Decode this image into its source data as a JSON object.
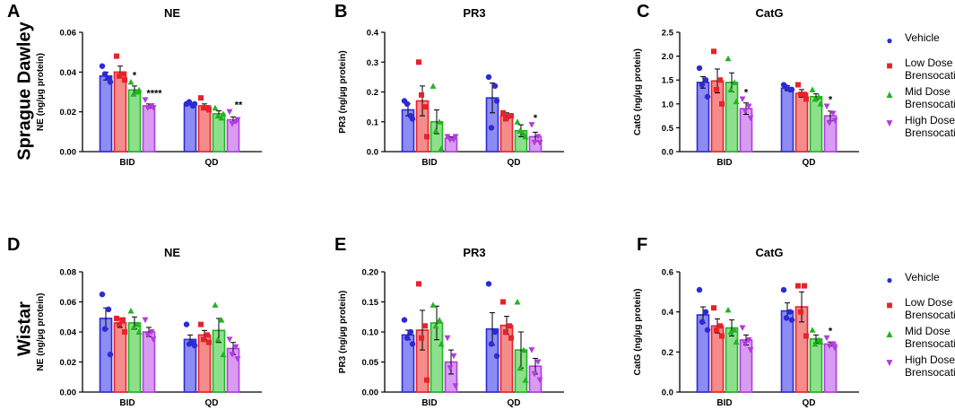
{
  "colors": {
    "vehicle": "#2b2bd6",
    "low": "#e8222a",
    "mid": "#22b322",
    "high": "#b23be0",
    "vehicle_fill": "#8c8cf2",
    "low_fill": "#f58c8c",
    "mid_fill": "#8ce08c",
    "high_fill": "#d79cf2"
  },
  "row_labels": [
    "Sprague Dawley",
    "Wistar"
  ],
  "legend": [
    {
      "key": "vehicle",
      "symbol": "●",
      "label": "Vehicle"
    },
    {
      "key": "low",
      "symbol": "■",
      "label": "Low Dose\nBrensocatib"
    },
    {
      "key": "mid",
      "symbol": "▲",
      "label": "Mid Dose\nBrensocatib"
    },
    {
      "key": "high",
      "symbol": "▼",
      "label": "High Dose\nBrensocatib"
    }
  ],
  "chart_data": [
    {
      "letter": "A",
      "type": "bar",
      "title": "NE",
      "ylabel": "NE (ng/µg protein)",
      "ylim": [
        0,
        0.06
      ],
      "yticks": [
        "0.00",
        "0.02",
        "0.04",
        "0.06"
      ],
      "ytick_values": [
        0,
        0.02,
        0.04,
        0.06
      ],
      "groups": [
        "BID",
        "QD"
      ],
      "series": [
        {
          "name": "Vehicle",
          "key": "vehicle",
          "values": [
            0.038,
            0.024
          ],
          "sem": [
            0.002,
            0.0005
          ],
          "points": [
            [
              0.043,
              0.037,
              0.039,
              0.035
            ],
            [
              0.024,
              0.023,
              0.025,
              0.024
            ]
          ]
        },
        {
          "name": "Low Dose Brensocatib",
          "key": "low",
          "values": [
            0.04,
            0.023
          ],
          "sem": [
            0.003,
            0.001
          ],
          "points": [
            [
              0.048,
              0.039,
              0.038,
              0.036
            ],
            [
              0.027,
              0.022,
              0.022,
              0.021
            ]
          ]
        },
        {
          "name": "Mid Dose Brensocatib",
          "key": "mid",
          "values": [
            0.031,
            0.019
          ],
          "sem": [
            0.002,
            0.0015
          ],
          "points": [
            [
              0.035,
              0.03,
              0.029,
              0.031
            ],
            [
              0.022,
              0.017,
              0.018,
              0.019
            ]
          ]
        },
        {
          "name": "High Dose Brensocatib",
          "key": "high",
          "values": [
            0.023,
            0.016
          ],
          "sem": [
            0.001,
            0.0015
          ],
          "points": [
            [
              0.026,
              0.023,
              0.022,
              0.022
            ],
            [
              0.02,
              0.015,
              0.014,
              0.016
            ]
          ]
        }
      ],
      "annotations": [
        {
          "series": 2,
          "group": 0,
          "text": "*"
        },
        {
          "series": 3,
          "group": 0,
          "text": "****"
        },
        {
          "series": 3,
          "group": 1,
          "text": "**"
        }
      ]
    },
    {
      "letter": "B",
      "type": "bar",
      "title": "PR3",
      "ylabel": "PR3 (ng/µg protein)",
      "ylim": [
        0,
        0.4
      ],
      "yticks": [
        "0.0",
        "0.1",
        "0.2",
        "0.3",
        "0.4"
      ],
      "ytick_values": [
        0,
        0.1,
        0.2,
        0.3,
        0.4
      ],
      "groups": [
        "BID",
        "QD"
      ],
      "series": [
        {
          "name": "Vehicle",
          "key": "vehicle",
          "values": [
            0.14,
            0.18
          ],
          "sem": [
            0.02,
            0.05
          ],
          "points": [
            [
              0.17,
              0.12,
              0.16,
              0.11
            ],
            [
              0.25,
              0.22,
              0.08,
              0.17
            ]
          ]
        },
        {
          "name": "Low Dose Brensocatib",
          "key": "low",
          "values": [
            0.17,
            0.12
          ],
          "sem": [
            0.05,
            0.01
          ],
          "points": [
            [
              0.3,
              0.15,
              0.19,
              0.05
            ],
            [
              0.13,
              0.12,
              0.11,
              0.12
            ]
          ]
        },
        {
          "name": "Mid Dose Brensocatib",
          "key": "mid",
          "values": [
            0.1,
            0.07
          ],
          "sem": [
            0.04,
            0.02
          ],
          "points": [
            [
              0.22,
              0.1,
              0.07,
              0.01
            ],
            [
              0.1,
              0.06,
              0.07,
              0.05
            ]
          ]
        },
        {
          "name": "High Dose Brensocatib",
          "key": "high",
          "values": [
            0.045,
            0.05
          ],
          "sem": [
            0.005,
            0.015
          ],
          "points": [
            [
              0.05,
              0.04,
              0.04,
              0.05
            ],
            [
              0.09,
              0.05,
              0.03,
              0.03
            ]
          ]
        }
      ],
      "annotations": [
        {
          "series": 3,
          "group": 1,
          "text": "*"
        }
      ]
    },
    {
      "letter": "C",
      "type": "bar",
      "title": "CatG",
      "ylabel": "CatG (ng/µg protein)",
      "ylim": [
        0,
        2.5
      ],
      "yticks": [
        "0.0",
        "0.5",
        "1.0",
        "1.5",
        "2.0",
        "2.5"
      ],
      "ytick_values": [
        0,
        0.5,
        1.0,
        1.5,
        2.0,
        2.5
      ],
      "groups": [
        "BID",
        "QD"
      ],
      "series": [
        {
          "name": "Vehicle",
          "key": "vehicle",
          "values": [
            1.45,
            1.33
          ],
          "sem": [
            0.12,
            0.05
          ],
          "points": [
            [
              1.75,
              1.5,
              1.4,
              1.15
            ],
            [
              1.4,
              1.3,
              1.35,
              1.3
            ]
          ]
        },
        {
          "name": "Low Dose Brensocatib",
          "key": "low",
          "values": [
            1.48,
            1.22
          ],
          "sem": [
            0.25,
            0.08
          ],
          "points": [
            [
              2.1,
              1.5,
              1.3,
              1.0
            ],
            [
              1.4,
              1.2,
              1.2,
              1.1
            ]
          ]
        },
        {
          "name": "Mid Dose Brensocatib",
          "key": "mid",
          "values": [
            1.45,
            1.15
          ],
          "sem": [
            0.2,
            0.06
          ],
          "points": [
            [
              1.95,
              1.45,
              1.3,
              1.05
            ],
            [
              1.3,
              1.15,
              1.1,
              1.0
            ]
          ]
        },
        {
          "name": "High Dose Brensocatib",
          "key": "high",
          "values": [
            0.9,
            0.75
          ],
          "sem": [
            0.12,
            0.1
          ],
          "points": [
            [
              1.1,
              0.95,
              0.85,
              0.7
            ],
            [
              0.95,
              0.8,
              0.6,
              0.65
            ]
          ]
        }
      ],
      "annotations": [
        {
          "series": 3,
          "group": 0,
          "text": "*"
        },
        {
          "series": 3,
          "group": 1,
          "text": "*"
        }
      ]
    },
    {
      "letter": "D",
      "type": "bar",
      "title": "NE",
      "ylabel": "NE (ng/µg protein)",
      "ylim": [
        0,
        0.08
      ],
      "yticks": [
        "0.00",
        "0.02",
        "0.04",
        "0.06",
        "0.08"
      ],
      "ytick_values": [
        0,
        0.02,
        0.04,
        0.06,
        0.08
      ],
      "groups": [
        "BID",
        "QD"
      ],
      "series": [
        {
          "name": "Vehicle",
          "key": "vehicle",
          "values": [
            0.049,
            0.035
          ],
          "sem": [
            0.007,
            0.003
          ],
          "points": [
            [
              0.065,
              0.055,
              0.042,
              0.025
            ],
            [
              0.045,
              0.033,
              0.032,
              0.031
            ]
          ]
        },
        {
          "name": "Low Dose Brensocatib",
          "key": "low",
          "values": [
            0.046,
            0.038
          ],
          "sem": [
            0.003,
            0.003
          ],
          "points": [
            [
              0.049,
              0.048,
              0.045,
              0.04
            ],
            [
              0.045,
              0.038,
              0.035,
              0.033
            ]
          ]
        },
        {
          "name": "Mid Dose Brensocatib",
          "key": "mid",
          "values": [
            0.046,
            0.041
          ],
          "sem": [
            0.004,
            0.008
          ],
          "points": [
            [
              0.054,
              0.045,
              0.043,
              0.04
            ],
            [
              0.058,
              0.048,
              0.035,
              0.025
            ]
          ]
        },
        {
          "name": "High Dose Brensocatib",
          "key": "high",
          "values": [
            0.04,
            0.029
          ],
          "sem": [
            0.003,
            0.004
          ],
          "points": [
            [
              0.048,
              0.04,
              0.038,
              0.035
            ],
            [
              0.035,
              0.03,
              0.025,
              0.022
            ]
          ]
        }
      ],
      "annotations": []
    },
    {
      "letter": "E",
      "type": "bar",
      "title": "PR3",
      "ylabel": "PR3 (ng/µg protein)",
      "ylim": [
        0,
        0.2
      ],
      "yticks": [
        "0.00",
        "0.05",
        "0.10",
        "0.15",
        "0.20"
      ],
      "ytick_values": [
        0,
        0.05,
        0.1,
        0.15,
        0.2
      ],
      "groups": [
        "BID",
        "QD"
      ],
      "series": [
        {
          "name": "Vehicle",
          "key": "vehicle",
          "values": [
            0.095,
            0.105
          ],
          "sem": [
            0.008,
            0.027
          ],
          "points": [
            [
              0.12,
              0.1,
              0.09,
              0.08
            ],
            [
              0.18,
              0.1,
              0.08,
              0.06
            ]
          ]
        },
        {
          "name": "Low Dose Brensocatib",
          "key": "low",
          "values": [
            0.103,
            0.111
          ],
          "sem": [
            0.033,
            0.015
          ],
          "points": [
            [
              0.18,
              0.11,
              0.09,
              0.02
            ],
            [
              0.15,
              0.11,
              0.1,
              0.09
            ]
          ]
        },
        {
          "name": "Mid Dose Brensocatib",
          "key": "mid",
          "values": [
            0.115,
            0.07
          ],
          "sem": [
            0.028,
            0.03
          ],
          "points": [
            [
              0.145,
              0.12,
              0.11,
              0.08
            ],
            [
              0.15,
              0.07,
              0.04,
              0.02
            ]
          ]
        },
        {
          "name": "High Dose Brensocatib",
          "key": "high",
          "values": [
            0.05,
            0.043
          ],
          "sem": [
            0.02,
            0.013
          ],
          "points": [
            [
              0.09,
              0.06,
              0.04,
              0.01
            ],
            [
              0.07,
              0.05,
              0.03,
              0.02
            ]
          ]
        }
      ],
      "annotations": []
    },
    {
      "letter": "F",
      "type": "bar",
      "title": "CatG",
      "ylabel": "CatG (ng/µg protein)",
      "ylim": [
        0,
        0.6
      ],
      "yticks": [
        "0.0",
        "0.2",
        "0.4",
        "0.6"
      ],
      "ytick_values": [
        0,
        0.2,
        0.4,
        0.6
      ],
      "groups": [
        "BID",
        "QD"
      ],
      "series": [
        {
          "name": "Vehicle",
          "key": "vehicle",
          "values": [
            0.385,
            0.405
          ],
          "sem": [
            0.04,
            0.04
          ],
          "points": [
            [
              0.51,
              0.4,
              0.35,
              0.31
            ],
            [
              0.51,
              0.4,
              0.37,
              0.36
            ]
          ]
        },
        {
          "name": "Low Dose Brensocatib",
          "key": "low",
          "values": [
            0.33,
            0.425
          ],
          "sem": [
            0.035,
            0.075
          ],
          "points": [
            [
              0.42,
              0.33,
              0.31,
              0.28
            ],
            [
              0.53,
              0.53,
              0.4,
              0.28
            ]
          ]
        },
        {
          "name": "Mid Dose Brensocatib",
          "key": "mid",
          "values": [
            0.32,
            0.265
          ],
          "sem": [
            0.04,
            0.02
          ],
          "points": [
            [
              0.41,
              0.31,
              0.3,
              0.25
            ],
            [
              0.31,
              0.26,
              0.24,
              0.25
            ]
          ]
        },
        {
          "name": "High Dose Brensocatib",
          "key": "high",
          "values": [
            0.26,
            0.24
          ],
          "sem": [
            0.025,
            0.01
          ],
          "points": [
            [
              0.32,
              0.26,
              0.24,
              0.21
            ],
            [
              0.27,
              0.24,
              0.23,
              0.22
            ]
          ]
        }
      ],
      "annotations": [
        {
          "series": 3,
          "group": 1,
          "text": "*"
        }
      ]
    }
  ]
}
